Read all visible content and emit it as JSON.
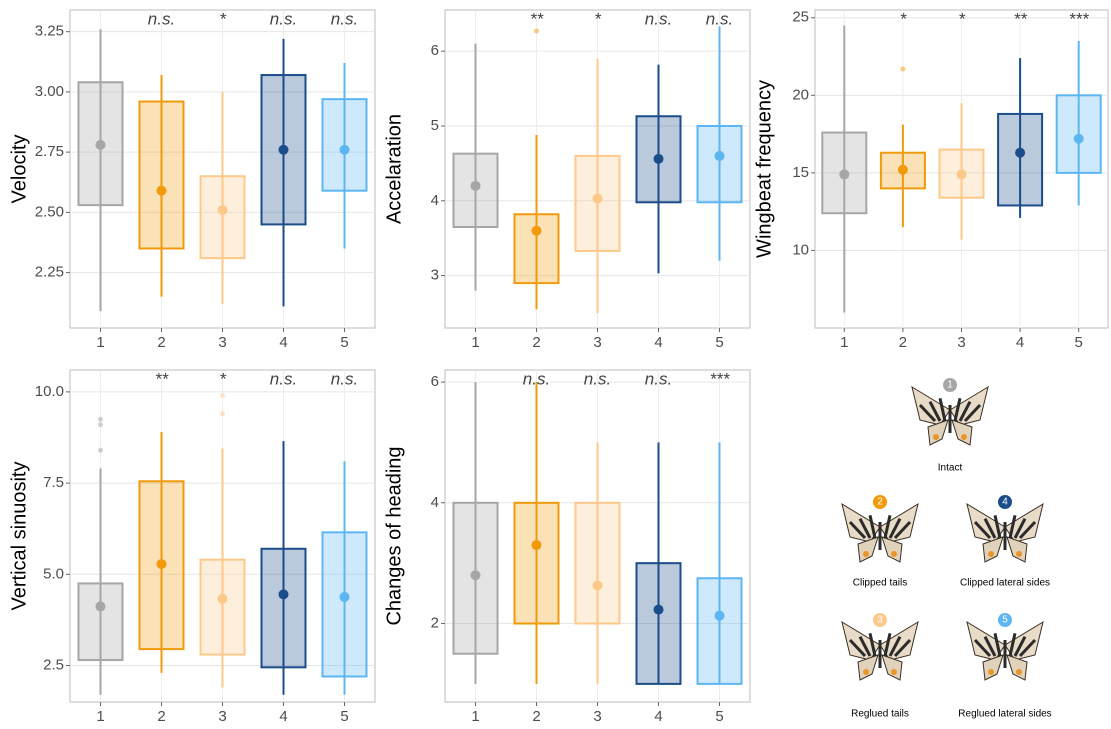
{
  "chart_data": [
    {
      "type": "box",
      "ylabel": "Velocity",
      "categories": [
        "1",
        "2",
        "3",
        "4",
        "5"
      ],
      "colors": [
        "#a6a6a6",
        "#f09a0c",
        "#fcc98a",
        "#1b4d8a",
        "#5cb6f2"
      ],
      "boxes": {
        "low": [
          2.09,
          2.15,
          2.12,
          2.11,
          2.35
        ],
        "q1": [
          2.53,
          2.35,
          2.31,
          2.45,
          2.59
        ],
        "center": [
          2.78,
          2.59,
          2.51,
          2.76,
          2.76
        ],
        "q3": [
          3.04,
          2.96,
          2.65,
          3.07,
          2.97
        ],
        "high": [
          3.26,
          3.07,
          3.0,
          3.22,
          3.12
        ]
      },
      "outliers": [
        [],
        [],
        [],
        [],
        []
      ],
      "annotations": [
        null,
        "n.s.",
        "*",
        "n.s.",
        "n.s."
      ],
      "ylim": [
        2.02,
        3.34
      ],
      "yticks": [
        2.25,
        {
          "value": 2.5,
          "label": "2.50"
        },
        2.75,
        {
          "value": 3,
          "label": "3.00"
        },
        3.25
      ],
      "grid": true
    },
    {
      "type": "box",
      "ylabel": "Accelaration",
      "categories": [
        "1",
        "2",
        "3",
        "4",
        "5"
      ],
      "colors": [
        "#a6a6a6",
        "#f09a0c",
        "#fcc98a",
        "#1b4d8a",
        "#5cb6f2"
      ],
      "boxes": {
        "low": [
          2.8,
          2.55,
          2.5,
          3.03,
          3.2
        ],
        "q1": [
          3.65,
          2.9,
          3.33,
          3.98,
          3.98
        ],
        "center": [
          4.2,
          3.6,
          4.03,
          4.56,
          4.6
        ],
        "q3": [
          4.63,
          3.82,
          4.6,
          5.13,
          5.0
        ],
        "high": [
          6.1,
          4.88,
          5.9,
          5.82,
          6.33
        ]
      },
      "outliers": [
        [],
        [
          6.27
        ],
        [],
        [],
        []
      ],
      "annotations": [
        null,
        "**",
        "*",
        "n.s.",
        "n.s."
      ],
      "ylim": [
        2.3,
        6.55
      ],
      "yticks": [
        3,
        4,
        5,
        6
      ],
      "grid": true
    },
    {
      "type": "box",
      "ylabel": "Wingbeat frequency",
      "categories": [
        "1",
        "2",
        "3",
        "4",
        "5"
      ],
      "colors": [
        "#a6a6a6",
        "#f09a0c",
        "#fcc98a",
        "#1b4d8a",
        "#5cb6f2"
      ],
      "boxes": {
        "low": [
          6,
          11.5,
          10.7,
          12.1,
          12.9
        ],
        "q1": [
          12.4,
          14,
          13.4,
          12.9,
          15
        ],
        "center": [
          14.9,
          15.2,
          14.9,
          16.3,
          17.2
        ],
        "q3": [
          17.6,
          16.3,
          16.5,
          18.8,
          20
        ],
        "high": [
          24.5,
          18.1,
          19.5,
          22.4,
          23.5
        ]
      },
      "outliers": [
        [],
        [
          21.7
        ],
        [],
        [],
        []
      ],
      "annotations": [
        null,
        "*",
        "*",
        "**",
        "***"
      ],
      "ylim": [
        5,
        25.5
      ],
      "yticks": [
        10,
        15,
        20,
        25
      ],
      "grid": true
    },
    {
      "type": "box",
      "ylabel": "Vertical sinuosity",
      "categories": [
        "1",
        "2",
        "3",
        "4",
        "5"
      ],
      "colors": [
        "#a6a6a6",
        "#f09a0c",
        "#fcc98a",
        "#1b4d8a",
        "#5cb6f2"
      ],
      "boxes": {
        "low": [
          1.7,
          2.3,
          1.9,
          1.7,
          1.7
        ],
        "q1": [
          2.65,
          2.95,
          2.8,
          2.45,
          2.2
        ],
        "center": [
          4.12,
          5.28,
          4.33,
          4.45,
          4.38
        ],
        "q3": [
          4.75,
          7.55,
          5.4,
          5.7,
          6.15
        ],
        "high": [
          7.9,
          8.9,
          8.45,
          8.65,
          8.1
        ]
      },
      "outliers": [
        [
          8.4,
          9.1,
          9.25
        ],
        [],
        [
          9.4,
          9.9
        ],
        [],
        []
      ],
      "annotations": [
        null,
        "**",
        "*",
        "n.s.",
        "n.s."
      ],
      "ylim": [
        1.5,
        10.6
      ],
      "yticks": [
        2.5,
        {
          "value": 5,
          "label": "5.0"
        },
        7.5,
        {
          "value": 10,
          "label": "10.0"
        }
      ],
      "grid": true
    },
    {
      "type": "box",
      "ylabel": "Changes of heading",
      "categories": [
        "1",
        "2",
        "3",
        "4",
        "5"
      ],
      "colors": [
        "#a6a6a6",
        "#f09a0c",
        "#fcc98a",
        "#1b4d8a",
        "#5cb6f2"
      ],
      "boxes": {
        "low": [
          1,
          1,
          1,
          1,
          1
        ],
        "q1": [
          1.5,
          2,
          2,
          1,
          1
        ],
        "center": [
          2.8,
          3.3,
          2.63,
          2.23,
          2.13
        ],
        "q3": [
          4,
          4,
          4,
          3,
          2.75
        ],
        "high": [
          6,
          6,
          5,
          5,
          5
        ]
      },
      "outliers": [
        [],
        [],
        [],
        [],
        []
      ],
      "annotations": [
        null,
        "n.s.",
        "n.s.",
        "n.s.",
        "***"
      ],
      "ylim": [
        0.7,
        6.2
      ],
      "yticks": [
        2,
        4,
        6
      ],
      "grid": true
    }
  ],
  "legend_panel": {
    "items": [
      {
        "number": "1",
        "label": "Intact"
      },
      {
        "number": "2",
        "label": "Clipped tails"
      },
      {
        "number": "4",
        "label": "Clipped lateral sides"
      },
      {
        "number": "3",
        "label": "Reglued tails"
      },
      {
        "number": "5",
        "label": "Reglued lateral sides"
      }
    ]
  }
}
